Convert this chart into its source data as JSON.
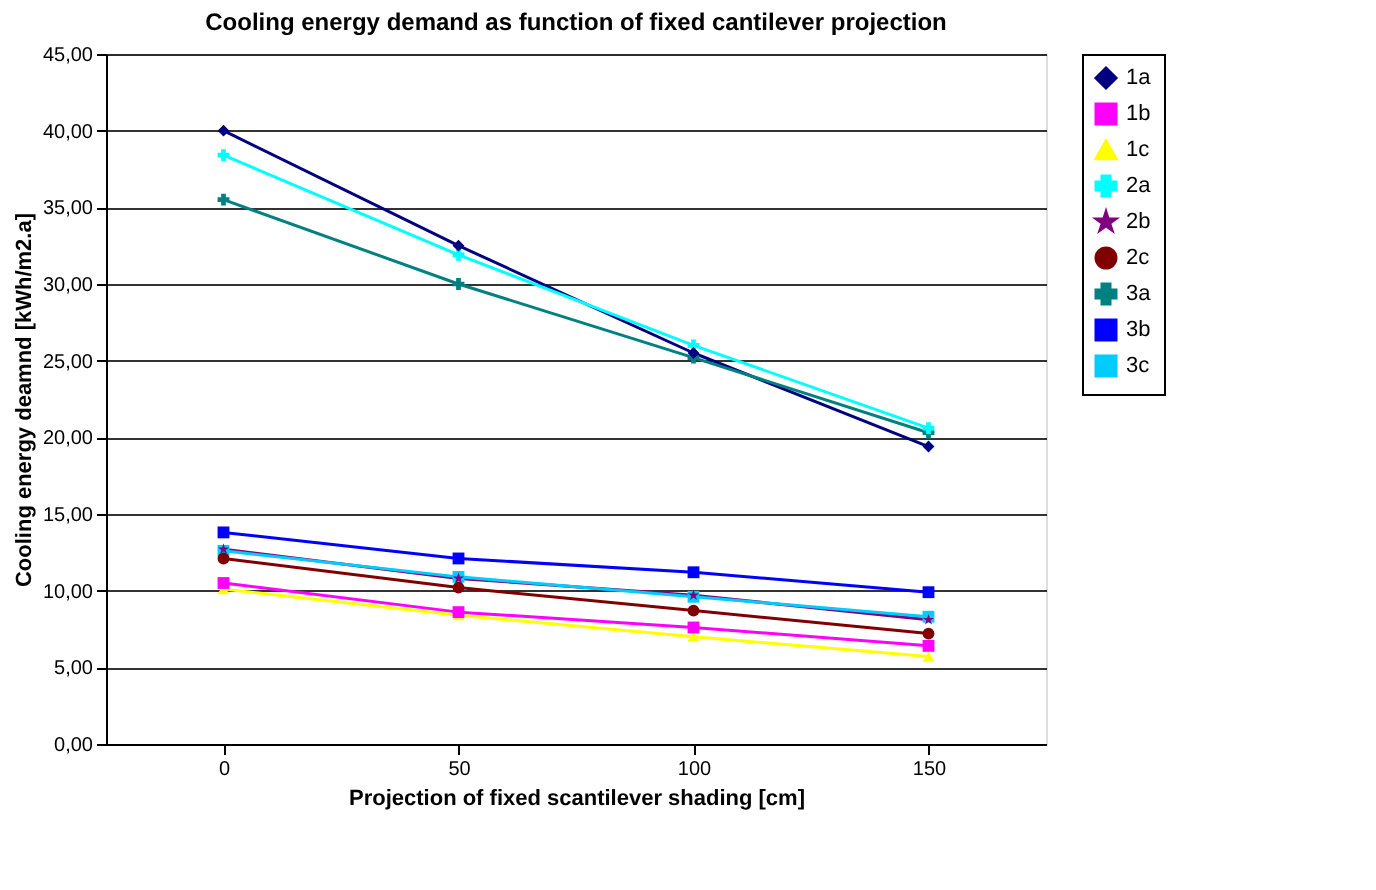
{
  "chart_data": {
    "type": "line",
    "title": "Cooling energy demand as function of fixed cantilever projection",
    "xlabel": "Projection of fixed scantilever shading [cm]",
    "ylabel": "Cooling energy deamnd [kWh/m2.a]",
    "categories": [
      "0",
      "50",
      "100",
      "150"
    ],
    "series": [
      {
        "name": "1a",
        "color": "#000080",
        "marker": "diamond",
        "values": [
          40.0,
          32.5,
          25.5,
          19.4
        ]
      },
      {
        "name": "1b",
        "color": "#ff00ff",
        "marker": "square",
        "values": [
          10.5,
          8.6,
          7.6,
          6.4
        ]
      },
      {
        "name": "1c",
        "color": "#ffff00",
        "marker": "triangle",
        "values": [
          10.1,
          8.4,
          7.0,
          5.7
        ]
      },
      {
        "name": "2a",
        "color": "#00ffff",
        "marker": "cross",
        "values": [
          38.4,
          31.9,
          26.0,
          20.6
        ]
      },
      {
        "name": "2b",
        "color": "#800080",
        "marker": "star",
        "values": [
          12.7,
          10.8,
          9.7,
          8.1
        ]
      },
      {
        "name": "2c",
        "color": "#800000",
        "marker": "circle",
        "values": [
          12.1,
          10.2,
          8.7,
          7.2
        ]
      },
      {
        "name": "3a",
        "color": "#008080",
        "marker": "cross",
        "values": [
          35.5,
          30.0,
          25.2,
          20.3
        ]
      },
      {
        "name": "3b",
        "color": "#0000ff",
        "marker": "square",
        "values": [
          13.8,
          12.1,
          11.2,
          9.9
        ]
      },
      {
        "name": "3c",
        "color": "#00ccff",
        "marker": "square",
        "values": [
          12.6,
          10.9,
          9.6,
          8.3
        ]
      }
    ],
    "ylim": [
      0,
      45
    ],
    "yticks": [
      {
        "value": 0,
        "label": "0,00"
      },
      {
        "value": 5,
        "label": "5,00"
      },
      {
        "value": 10,
        "label": "10,00"
      },
      {
        "value": 15,
        "label": "15,00"
      },
      {
        "value": 20,
        "label": "20,00"
      },
      {
        "value": 25,
        "label": "25,00"
      },
      {
        "value": 30,
        "label": "30,00"
      },
      {
        "value": 35,
        "label": "35,00"
      },
      {
        "value": 40,
        "label": "40,00"
      },
      {
        "value": 45,
        "label": "45,00"
      }
    ],
    "grid": "y",
    "legend": "right"
  }
}
